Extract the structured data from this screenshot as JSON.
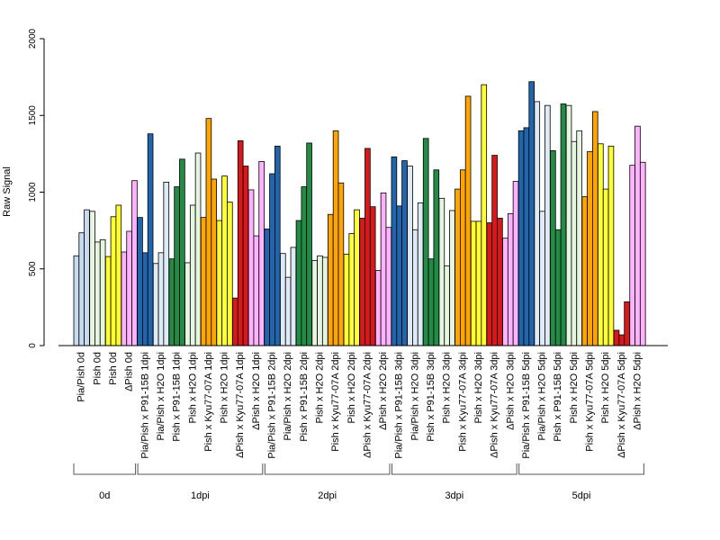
{
  "chart_data": {
    "type": "bar",
    "title": "",
    "xlabel": "",
    "ylabel": "Raw Signal",
    "ylim": [
      0,
      2000
    ],
    "yticks": [
      0,
      500,
      1000,
      1500,
      2000
    ],
    "grid": false,
    "colors": {
      "Pia/Pish": "#c6dbef",
      "Pia/Pish x P91-15B": "#2166ac",
      "Pia/Pish x H2O": "#deebf7",
      "Pish": "#e5f5e0",
      "Pish x P91-15B": "#238b45",
      "Pish x H2O": "#e5f5e0",
      "Pish x Kyu77-07A": "#ffa500",
      "Pish x H2O (Kyu)": "#ffff33",
      "Pish 0d": "#ffff33",
      "ΔPish x Kyu77-07A": "#d7191c",
      "ΔPish x H2O": "#ffb3ff",
      "ΔPish 0d": "#ffb3ff"
    },
    "categories": [
      {
        "label": "Pia/Pish 0d",
        "color": "#c6dbef",
        "values": [
          585,
          735,
          885
        ]
      },
      {
        "label": "Pish 0d",
        "color": "#e5f5e0",
        "values": [
          875,
          675,
          690
        ]
      },
      {
        "label": "Pish 0d",
        "color": "#ffff33",
        "values": [
          580,
          840,
          915
        ]
      },
      {
        "label": "ΔPish 0d",
        "color": "#ffb3ff",
        "values": [
          610,
          745,
          1075
        ]
      },
      {
        "label": "Pia/Pish x P91-15B 1dpi",
        "color": "#2166ac",
        "values": [
          835,
          605,
          1380
        ]
      },
      {
        "label": "Pia/Pish x H2O 1dpi",
        "color": "#deebf7",
        "values": [
          535,
          605,
          1065
        ]
      },
      {
        "label": "Pish x P91-15B 1dpi",
        "color": "#238b45",
        "values": [
          565,
          1035,
          1215
        ]
      },
      {
        "label": "Pish x H2O 1dpi",
        "color": "#e5f5e0",
        "values": [
          540,
          915,
          1255
        ]
      },
      {
        "label": "Pish x Kyu77-07A 1dpi",
        "color": "#ffa500",
        "values": [
          835,
          1480,
          1085
        ]
      },
      {
        "label": "Pish x H2O 1dpi",
        "color": "#ffff33",
        "values": [
          815,
          1105,
          935
        ]
      },
      {
        "label": "ΔPish x Kyu77-07A 1dpi",
        "color": "#d7191c",
        "values": [
          310,
          1335,
          1170
        ]
      },
      {
        "label": "ΔPish x H2O 1dpi",
        "color": "#ffb3ff",
        "values": [
          1015,
          715,
          1200
        ]
      },
      {
        "label": "Pia/Pish x P91-15B 2dpi",
        "color": "#2166ac",
        "values": [
          760,
          1120,
          1300
        ]
      },
      {
        "label": "Pia/Pish x H2O 2dpi",
        "color": "#deebf7",
        "values": [
          600,
          445,
          640
        ]
      },
      {
        "label": "Pish x P91-15B 2dpi",
        "color": "#238b45",
        "values": [
          815,
          1035,
          1320
        ]
      },
      {
        "label": "Pish x H2O 2dpi",
        "color": "#e5f5e0",
        "values": [
          555,
          585,
          575
        ]
      },
      {
        "label": "Pish x Kyu77-07A 2dpi",
        "color": "#ffa500",
        "values": [
          855,
          1400,
          1060
        ]
      },
      {
        "label": "Pish x H2O 2dpi",
        "color": "#ffff33",
        "values": [
          595,
          730,
          885
        ]
      },
      {
        "label": "ΔPish x Kyu77-07A 2dpi",
        "color": "#d7191c",
        "values": [
          830,
          1285,
          905
        ]
      },
      {
        "label": "ΔPish x H2O 2dpi",
        "color": "#ffb3ff",
        "values": [
          490,
          995,
          770
        ]
      },
      {
        "label": "Pia/Pish x P91-15B 3dpi",
        "color": "#2166ac",
        "values": [
          1230,
          910,
          1205
        ]
      },
      {
        "label": "Pia/Pish x H2O 3dpi",
        "color": "#deebf7",
        "values": [
          1170,
          755,
          930
        ]
      },
      {
        "label": "Pish x P91-15B 3dpi",
        "color": "#238b45",
        "values": [
          1350,
          565,
          1145
        ]
      },
      {
        "label": "Pish x H2O 3dpi",
        "color": "#e5f5e0",
        "values": [
          960,
          520,
          880
        ]
      },
      {
        "label": "Pish x Kyu77-07A 3dpi",
        "color": "#ffa500",
        "values": [
          1020,
          1145,
          1625
        ]
      },
      {
        "label": "Pish x H2O 3dpi",
        "color": "#ffff33",
        "values": [
          810,
          810,
          1700
        ]
      },
      {
        "label": "ΔPish x Kyu77-07A 3dpi",
        "color": "#d7191c",
        "values": [
          800,
          1240,
          830
        ]
      },
      {
        "label": "ΔPish x H2O 3dpi",
        "color": "#ffb3ff",
        "values": [
          700,
          860,
          1070
        ]
      },
      {
        "label": "Pia/Pish x P91-15B 5dpi",
        "color": "#2166ac",
        "values": [
          1400,
          1420,
          1720
        ]
      },
      {
        "label": "Pia/Pish x H2O 5dpi",
        "color": "#deebf7",
        "values": [
          1590,
          875,
          1565
        ]
      },
      {
        "label": "Pish x P91-15B 5dpi",
        "color": "#238b45",
        "values": [
          1270,
          755,
          1575
        ]
      },
      {
        "label": "Pish x H2O 5dpi",
        "color": "#e5f5e0",
        "values": [
          1565,
          1330,
          1400
        ]
      },
      {
        "label": "Pish x Kyu77-07A 5dpi",
        "color": "#ffa500",
        "values": [
          970,
          1265,
          1525
        ]
      },
      {
        "label": "Pish x H2O 5dpi",
        "color": "#ffff33",
        "values": [
          1315,
          1020,
          1300
        ]
      },
      {
        "label": "ΔPish x Kyu77-07A 5dpi",
        "color": "#d7191c",
        "values": [
          100,
          70,
          285
        ]
      },
      {
        "label": "ΔPish x H2O 5dpi",
        "color": "#ffb3ff",
        "values": [
          1175,
          1430,
          1195
        ]
      }
    ],
    "groups": [
      {
        "label": "0d",
        "count": 4
      },
      {
        "label": "1dpi",
        "count": 8
      },
      {
        "label": "2dpi",
        "count": 8
      },
      {
        "label": "3dpi",
        "count": 8
      },
      {
        "label": "5dpi",
        "count": 8
      }
    ]
  }
}
